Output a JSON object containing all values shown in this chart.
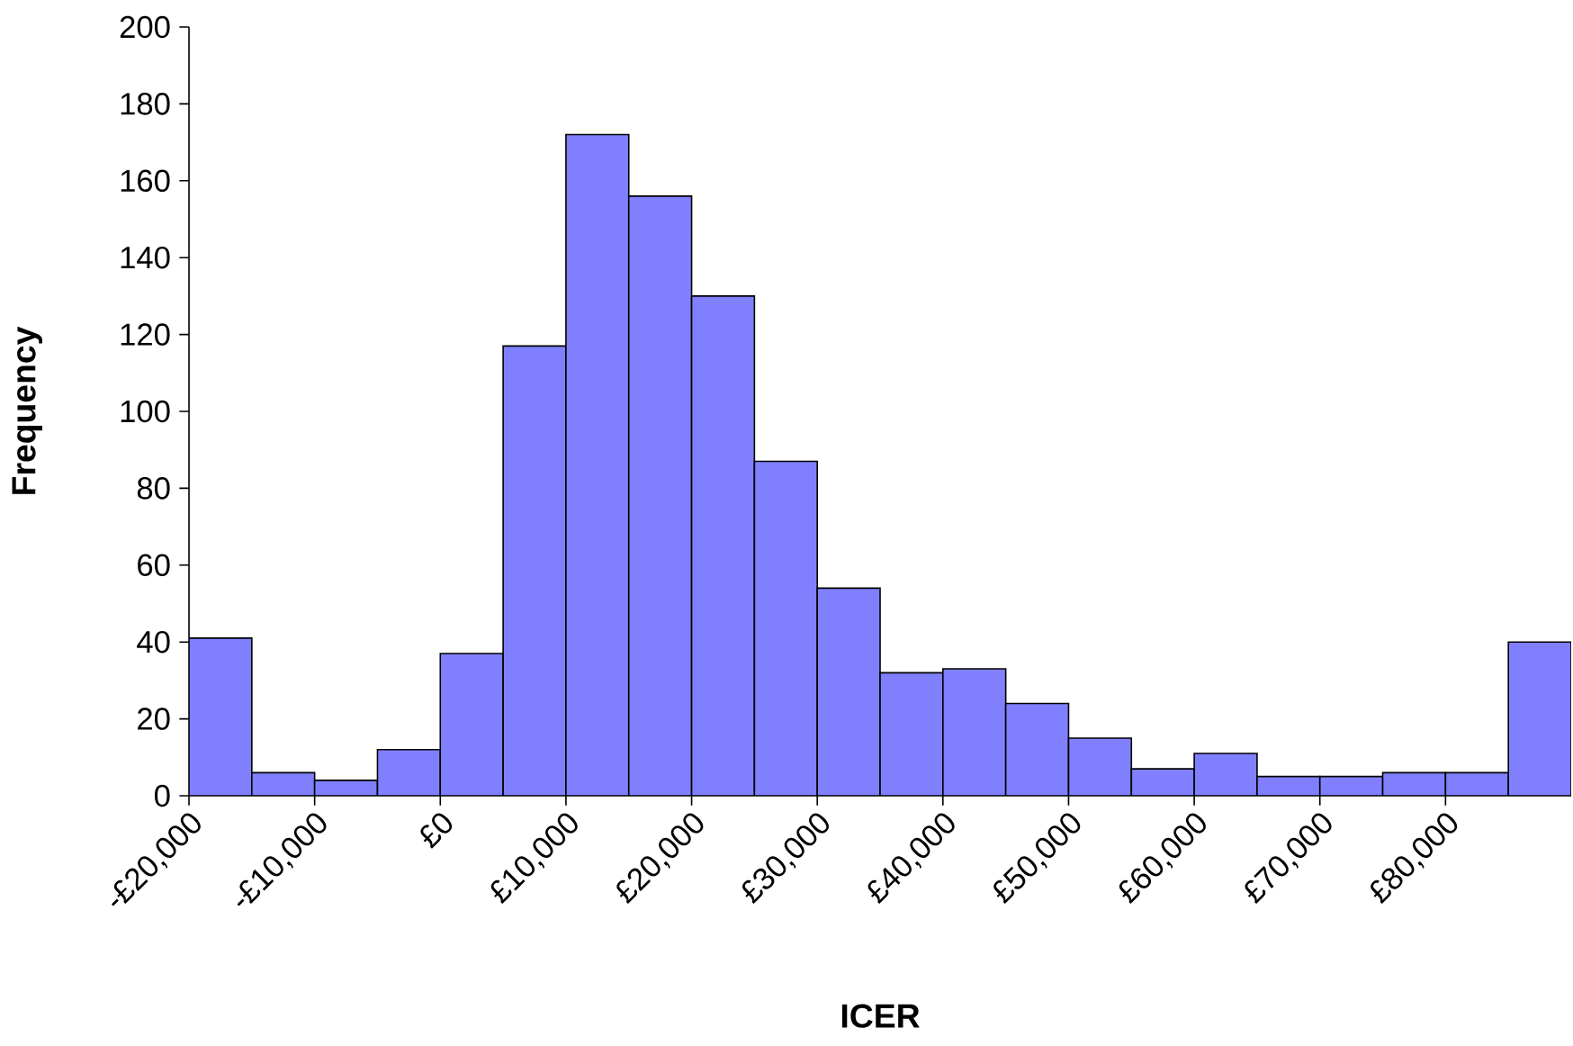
{
  "chart_data": {
    "type": "histogram",
    "xlabel": "ICER",
    "ylabel": "Frequency",
    "color": "#8080ff",
    "bins": [
      -20000,
      -15000,
      -10000,
      -5000,
      0,
      5000,
      10000,
      15000,
      20000,
      25000,
      30000,
      35000,
      40000,
      45000,
      50000,
      55000,
      60000,
      65000,
      70000,
      75000,
      80000,
      85000,
      90000
    ],
    "values": [
      41,
      6,
      4,
      12,
      37,
      117,
      172,
      156,
      130,
      87,
      54,
      32,
      33,
      24,
      15,
      7,
      11,
      5,
      5,
      6,
      6,
      40
    ],
    "xlim": [
      -20000,
      90000
    ],
    "xticks": [
      {
        "value": -20000,
        "label": "-£20,000"
      },
      {
        "value": -10000,
        "label": "-£10,000"
      },
      {
        "value": 0,
        "label": "£0"
      },
      {
        "value": 10000,
        "label": "£10,000"
      },
      {
        "value": 20000,
        "label": "£20,000"
      },
      {
        "value": 30000,
        "label": "£30,000"
      },
      {
        "value": 40000,
        "label": "£40,000"
      },
      {
        "value": 50000,
        "label": "£50,000"
      },
      {
        "value": 60000,
        "label": "£60,000"
      },
      {
        "value": 70000,
        "label": "£70,000"
      },
      {
        "value": 80000,
        "label": "£80,000"
      }
    ],
    "ylim": [
      0,
      200
    ],
    "yticks": [
      0,
      20,
      40,
      60,
      80,
      100,
      120,
      140,
      160,
      180,
      200
    ],
    "grid": false
  }
}
